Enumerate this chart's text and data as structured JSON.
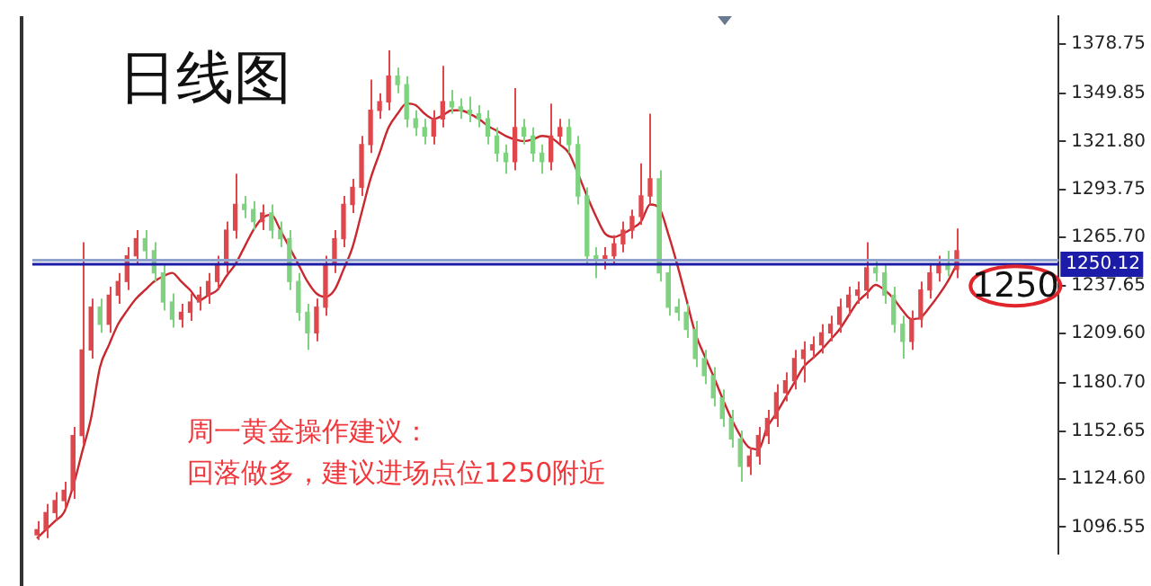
{
  "chart_data": {
    "type": "candlestick",
    "title": "日线图",
    "categories": [
      null,
      null,
      null,
      null,
      null,
      null,
      null,
      null,
      null,
      null,
      null,
      null,
      null,
      null,
      null,
      null,
      null,
      null,
      null,
      null,
      null,
      null,
      null,
      null,
      null,
      null,
      null,
      null,
      null,
      null,
      null,
      null,
      null,
      null,
      null,
      null,
      null,
      null,
      null,
      null,
      null,
      null,
      null,
      null,
      null,
      null,
      null,
      null,
      null,
      null,
      null,
      null,
      null,
      null,
      null,
      null,
      null,
      null,
      null,
      null,
      null,
      null,
      null,
      null,
      null,
      null,
      null,
      null,
      null,
      null,
      null,
      null,
      null,
      null,
      null,
      null,
      null,
      null,
      null,
      null,
      null,
      null,
      null,
      null,
      null,
      null,
      null,
      null,
      null,
      null,
      null,
      null,
      null,
      null,
      null,
      null,
      null,
      null,
      null,
      null,
      null,
      null,
      null
    ],
    "ohlc": [
      [
        1092,
        1100,
        1089,
        1095
      ],
      [
        1095,
        1110,
        1090,
        1105
      ],
      [
        1105,
        1117,
        1100,
        1112
      ],
      [
        1112,
        1123,
        1107,
        1118
      ],
      [
        1118,
        1155,
        1113,
        1150
      ],
      [
        1150,
        1263,
        1145,
        1200
      ],
      [
        1200,
        1230,
        1195,
        1225
      ],
      [
        1225,
        1230,
        1210,
        1215
      ],
      [
        1215,
        1237,
        1210,
        1232
      ],
      [
        1232,
        1245,
        1227,
        1240
      ],
      [
        1240,
        1260,
        1235,
        1255
      ],
      [
        1255,
        1270,
        1250,
        1265
      ],
      [
        1265,
        1270,
        1253,
        1258
      ],
      [
        1258,
        1263,
        1240,
        1245
      ],
      [
        1245,
        1250,
        1223,
        1228
      ],
      [
        1228,
        1233,
        1213,
        1218
      ],
      [
        1218,
        1227,
        1213,
        1222
      ],
      [
        1222,
        1233,
        1217,
        1228
      ],
      [
        1228,
        1237,
        1223,
        1232
      ],
      [
        1232,
        1245,
        1227,
        1240
      ],
      [
        1240,
        1255,
        1235,
        1250
      ],
      [
        1250,
        1275,
        1245,
        1270
      ],
      [
        1270,
        1303,
        1265,
        1285
      ],
      [
        1285,
        1290,
        1277,
        1282
      ],
      [
        1282,
        1287,
        1270,
        1275
      ],
      [
        1275,
        1285,
        1270,
        1280
      ],
      [
        1280,
        1285,
        1265,
        1270
      ],
      [
        1270,
        1275,
        1260,
        1265
      ],
      [
        1265,
        1270,
        1235,
        1240
      ],
      [
        1240,
        1245,
        1217,
        1222
      ],
      [
        1222,
        1227,
        1200,
        1210
      ],
      [
        1210,
        1230,
        1205,
        1225
      ],
      [
        1225,
        1255,
        1220,
        1250
      ],
      [
        1250,
        1270,
        1245,
        1265
      ],
      [
        1265,
        1290,
        1260,
        1285
      ],
      [
        1285,
        1300,
        1280,
        1295
      ],
      [
        1295,
        1325,
        1290,
        1320
      ],
      [
        1320,
        1358,
        1315,
        1340
      ],
      [
        1340,
        1350,
        1335,
        1345
      ],
      [
        1345,
        1375,
        1340,
        1360
      ],
      [
        1360,
        1365,
        1350,
        1355
      ],
      [
        1355,
        1360,
        1330,
        1335
      ],
      [
        1335,
        1340,
        1325,
        1330
      ],
      [
        1330,
        1335,
        1320,
        1325
      ],
      [
        1325,
        1340,
        1320,
        1335
      ],
      [
        1335,
        1366,
        1330,
        1345
      ],
      [
        1345,
        1352,
        1338,
        1342
      ],
      [
        1342,
        1347,
        1335,
        1340
      ],
      [
        1340,
        1348,
        1333,
        1338
      ],
      [
        1338,
        1343,
        1330,
        1335
      ],
      [
        1335,
        1340,
        1320,
        1325
      ],
      [
        1325,
        1330,
        1310,
        1315
      ],
      [
        1315,
        1320,
        1303,
        1310
      ],
      [
        1310,
        1353,
        1305,
        1330
      ],
      [
        1330,
        1335,
        1320,
        1325
      ],
      [
        1325,
        1330,
        1310,
        1315
      ],
      [
        1315,
        1320,
        1303,
        1310
      ],
      [
        1310,
        1344,
        1305,
        1325
      ],
      [
        1325,
        1335,
        1320,
        1330
      ],
      [
        1330,
        1335,
        1315,
        1320
      ],
      [
        1320,
        1325,
        1285,
        1290
      ],
      [
        1290,
        1295,
        1250,
        1255
      ],
      [
        1255,
        1260,
        1242,
        1252
      ],
      [
        1252,
        1260,
        1247,
        1255
      ],
      [
        1255,
        1267,
        1250,
        1262
      ],
      [
        1262,
        1275,
        1257,
        1270
      ],
      [
        1270,
        1282,
        1265,
        1278
      ],
      [
        1278,
        1309,
        1273,
        1290
      ],
      [
        1290,
        1338,
        1285,
        1300
      ],
      [
        1300,
        1305,
        1240,
        1245
      ],
      [
        1245,
        1250,
        1220,
        1225
      ],
      [
        1225,
        1230,
        1217,
        1222
      ],
      [
        1222,
        1227,
        1207,
        1212
      ],
      [
        1212,
        1217,
        1190,
        1195
      ],
      [
        1195,
        1200,
        1180,
        1185
      ],
      [
        1185,
        1190,
        1167,
        1172
      ],
      [
        1172,
        1177,
        1155,
        1160
      ],
      [
        1160,
        1165,
        1143,
        1148
      ],
      [
        1148,
        1153,
        1123,
        1132
      ],
      [
        1132,
        1143,
        1127,
        1138
      ],
      [
        1138,
        1155,
        1133,
        1150
      ],
      [
        1150,
        1165,
        1145,
        1160
      ],
      [
        1160,
        1180,
        1155,
        1175
      ],
      [
        1175,
        1187,
        1170,
        1182
      ],
      [
        1182,
        1200,
        1177,
        1195
      ],
      [
        1195,
        1205,
        1181,
        1200
      ],
      [
        1200,
        1208,
        1195,
        1203
      ],
      [
        1203,
        1215,
        1198,
        1210
      ],
      [
        1210,
        1220,
        1205,
        1215
      ],
      [
        1215,
        1230,
        1210,
        1225
      ],
      [
        1225,
        1237,
        1220,
        1232
      ],
      [
        1232,
        1240,
        1227,
        1235
      ],
      [
        1235,
        1263,
        1230,
        1248
      ],
      [
        1248,
        1253,
        1240,
        1245
      ],
      [
        1245,
        1250,
        1227,
        1232
      ],
      [
        1232,
        1237,
        1210,
        1215
      ],
      [
        1215,
        1220,
        1195,
        1205
      ],
      [
        1205,
        1223,
        1200,
        1218
      ],
      [
        1218,
        1240,
        1213,
        1235
      ],
      [
        1235,
        1250,
        1230,
        1245
      ],
      [
        1245,
        1255,
        1240,
        1250
      ],
      [
        1250,
        1258,
        1243,
        1247
      ],
      [
        1247,
        1271,
        1242,
        1258
      ]
    ],
    "colors": [
      "#e0474c",
      "#e0474c",
      "#e0474c",
      "#e0474c",
      "#e0474c",
      "#e0474c",
      "#e0474c",
      "#7fd27f",
      "#e0474c",
      "#e0474c",
      "#e0474c",
      "#e0474c",
      "#7fd27f",
      "#7fd27f",
      "#7fd27f",
      "#7fd27f",
      "#e0474c",
      "#e0474c",
      "#e0474c",
      "#e0474c",
      "#e0474c",
      "#e0474c",
      "#e0474c",
      "#7fd27f",
      "#7fd27f",
      "#e0474c",
      "#7fd27f",
      "#7fd27f",
      "#7fd27f",
      "#7fd27f",
      "#7fd27f",
      "#e0474c",
      "#e0474c",
      "#e0474c",
      "#e0474c",
      "#e0474c",
      "#e0474c",
      "#e0474c",
      "#e0474c",
      "#e0474c",
      "#7fd27f",
      "#7fd27f",
      "#7fd27f",
      "#7fd27f",
      "#e0474c",
      "#e0474c",
      "#7fd27f",
      "#7fd27f",
      "#7fd27f",
      "#7fd27f",
      "#7fd27f",
      "#7fd27f",
      "#7fd27f",
      "#e0474c",
      "#7fd27f",
      "#7fd27f",
      "#7fd27f",
      "#e0474c",
      "#e0474c",
      "#7fd27f",
      "#7fd27f",
      "#7fd27f",
      "#7fd27f",
      "#e0474c",
      "#e0474c",
      "#e0474c",
      "#e0474c",
      "#e0474c",
      "#e0474c",
      "#7fd27f",
      "#7fd27f",
      "#7fd27f",
      "#7fd27f",
      "#7fd27f",
      "#7fd27f",
      "#7fd27f",
      "#7fd27f",
      "#7fd27f",
      "#7fd27f",
      "#e0474c",
      "#e0474c",
      "#e0474c",
      "#e0474c",
      "#e0474c",
      "#e0474c",
      "#e0474c",
      "#e0474c",
      "#e0474c",
      "#e0474c",
      "#e0474c",
      "#e0474c",
      "#e0474c",
      "#e0474c",
      "#7fd27f",
      "#7fd27f",
      "#7fd27f",
      "#7fd27f",
      "#e0474c",
      "#e0474c",
      "#e0474c",
      "#e0474c",
      "#7fd27f",
      "#e0474c"
    ],
    "series": [
      {
        "type": "line",
        "color": "#c8282e",
        "values": [
          1090,
          1095,
          1100,
          1105,
          1120,
          1140,
          1160,
          1190,
          1203,
          1215,
          1223,
          1230,
          1235,
          1240,
          1243,
          1245,
          1240,
          1235,
          1229,
          1232,
          1235,
          1243,
          1250,
          1260,
          1270,
          1277,
          1279,
          1270,
          1260,
          1250,
          1240,
          1233,
          1231,
          1235,
          1247,
          1260,
          1280,
          1300,
          1315,
          1330,
          1338,
          1344,
          1343,
          1338,
          1335,
          1337,
          1340,
          1340,
          1338,
          1335,
          1331,
          1328,
          1325,
          1323,
          1322,
          1323,
          1325,
          1324,
          1320,
          1315,
          1303,
          1290,
          1278,
          1268,
          1266,
          1268,
          1271,
          1275,
          1285,
          1283,
          1268,
          1250,
          1230,
          1210,
          1197,
          1185,
          1172,
          1160,
          1150,
          1143,
          1142,
          1155,
          1163,
          1172,
          1181,
          1190,
          1195,
          1200,
          1206,
          1212,
          1220,
          1228,
          1233,
          1238,
          1235,
          1230,
          1223,
          1218,
          1219,
          1225,
          1232,
          1240,
          1250
        ]
      }
    ],
    "ylim": [
      1081,
      1395
    ],
    "yticks": [
      {
        "value": 1096.55,
        "label": "1096.55"
      },
      {
        "value": 1124.6,
        "label": "1124.60"
      },
      {
        "value": 1152.65,
        "label": "1152.65"
      },
      {
        "value": 1180.7,
        "label": "1180.70"
      },
      {
        "value": 1209.6,
        "label": "1209.60"
      },
      {
        "value": 1237.65,
        "label": "1237.65"
      },
      {
        "value": 1265.7,
        "label": "1265.70"
      },
      {
        "value": 1293.75,
        "label": "1293.75"
      },
      {
        "value": 1321.8,
        "label": "1321.80"
      },
      {
        "value": 1349.85,
        "label": "1349.85"
      },
      {
        "value": 1378.75,
        "label": "1378.75"
      }
    ],
    "tick_labels": "y",
    "ref_lines": [
      {
        "axis": "y",
        "value": 1252.5,
        "color": "#8fa3cc"
      },
      {
        "axis": "y",
        "value": 1250.12,
        "label": "1250.12",
        "color": "#1c1ca8"
      }
    ],
    "annotations": [
      "周一黄金操作建议：",
      "回落做多，建议进场点位1250附近",
      {
        "text": "1250",
        "y": 1250
      }
    ]
  }
}
